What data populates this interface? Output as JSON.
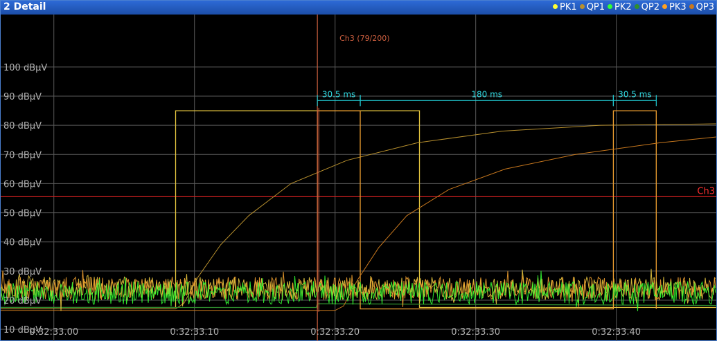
{
  "window": {
    "title": "2 Detail"
  },
  "legend": [
    {
      "label": "PK1",
      "color": "#ffff33"
    },
    {
      "label": "QP1",
      "color": "#b8902e"
    },
    {
      "label": "PK2",
      "color": "#33ff33"
    },
    {
      "label": "QP2",
      "color": "#2f8f2f"
    },
    {
      "label": "PK3",
      "color": "#ffa020"
    },
    {
      "label": "QP3",
      "color": "#c8781e"
    }
  ],
  "chart_data": {
    "type": "line",
    "xlim": [
      32.9622,
      33.4711
    ],
    "ylim": [
      6,
      118
    ],
    "grid": true,
    "y_ticks": [
      10,
      20,
      30,
      40,
      50,
      60,
      70,
      80,
      90,
      100
    ],
    "y_tick_labels": [
      "10 dBµV",
      "20 dBµV",
      "30 dBµV",
      "40 dBµV",
      "50 dBµV",
      "60 dBµV",
      "70 dBµV",
      "80 dBµV",
      "90 dBµV",
      "100 dBµV"
    ],
    "x_ticks": [
      33.0,
      33.1,
      33.2,
      33.3,
      33.4
    ],
    "x_tick_labels": [
      "0:32:33.00",
      "0:32:33.10",
      "0:32:33.20",
      "0:32:33.30",
      "0:32:33.40"
    ],
    "limit_line": {
      "label": "Ch3",
      "value": 55.5,
      "color": "#cc2020"
    },
    "marker": {
      "label": "Ch3 (79/200)",
      "x": 33.1874,
      "color": "#d06040"
    },
    "intervals": [
      {
        "label": "30.5 ms",
        "x0": 33.1874,
        "x1": 33.2179
      },
      {
        "label": "180 ms",
        "x0": 33.2179,
        "x1": 33.3979
      },
      {
        "label": "30.5 ms",
        "x0": 33.3979,
        "x1": 33.4284
      }
    ],
    "pulse_colors": {
      "pk1": "#e8c840",
      "pk3": "#f0a030"
    },
    "series": [
      {
        "name": "PK1",
        "color": "#e8c840",
        "x": [
          32.962,
          33.0866,
          33.0866,
          33.0866,
          33.26,
          33.26,
          33.471
        ],
        "y": [
          17.5,
          17.5,
          55.5,
          85,
          85,
          17.5,
          17.5
        ]
      },
      {
        "name": "QP1",
        "color": "#b8902e",
        "x": [
          32.962,
          33.0866,
          33.0926,
          33.1026,
          33.1186,
          33.1386,
          33.1686,
          33.2086,
          33.2586,
          33.3186,
          33.3886,
          33.471
        ],
        "y": [
          17,
          17,
          19,
          28,
          39,
          49,
          60,
          68,
          74,
          78,
          80,
          80.5
        ]
      },
      {
        "name": "QP2",
        "color": "#2f8f2f",
        "x": [
          32.962,
          33.1866,
          33.1874,
          33.471
        ],
        "y": [
          17.5,
          17.5,
          18.8,
          18.2
        ]
      },
      {
        "name": "PK3",
        "color": "#f0a030",
        "x": [
          33.1874,
          33.1874,
          33.1874,
          33.2179,
          33.2179,
          33.2179,
          33.3979,
          33.3979,
          33.3979,
          33.4284,
          33.4284,
          33.4284
        ],
        "y": [
          17,
          55,
          85,
          85,
          55,
          17,
          17,
          55,
          85,
          85,
          55,
          17
        ]
      },
      {
        "name": "QP3",
        "color": "#c8781e",
        "x": [
          32.962,
          33.2,
          33.206,
          33.216,
          33.231,
          33.251,
          33.281,
          33.321,
          33.371,
          33.431,
          33.471
        ],
        "y": [
          16.5,
          16.5,
          18,
          27,
          38,
          49,
          58,
          65,
          70,
          74,
          76
        ]
      },
      {
        "name": "PK2",
        "color": "#33ff33",
        "x": [
          32.962,
          33.471
        ],
        "y": [
          22.5,
          22.5
        ]
      }
    ]
  }
}
